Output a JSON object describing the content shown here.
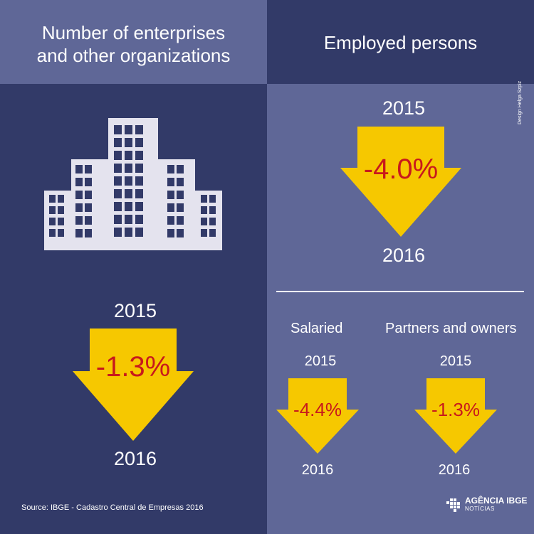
{
  "colors": {
    "dark_blue": "#323a68",
    "light_blue": "#5f6797",
    "arrow_yellow": "#f6c800",
    "percent_red": "#c8191c",
    "building": "#e4e3ee"
  },
  "left": {
    "title_line1": "Number of enterprises",
    "title_line2": "and other organizations",
    "icon": "building-icon",
    "year_from": "2015",
    "change": "-1.3%",
    "year_to": "2016"
  },
  "right": {
    "title": "Employed persons",
    "total": {
      "year_from": "2015",
      "change": "-4.0%",
      "year_to": "2016"
    },
    "salaried": {
      "label": "Salaried",
      "year_from": "2015",
      "change": "-4.4%",
      "year_to": "2016"
    },
    "partners": {
      "label": "Partners and owners",
      "year_from": "2015",
      "change": "-1.3%",
      "year_to": "2016"
    }
  },
  "footer": {
    "source": "Source: IBGE - Cadastro Central de Empresas 2016",
    "design_credit": "Design Helga Szpiz",
    "logo_name": "AGÊNCIA IBGE",
    "logo_sub": "NOTÍCIAS"
  }
}
